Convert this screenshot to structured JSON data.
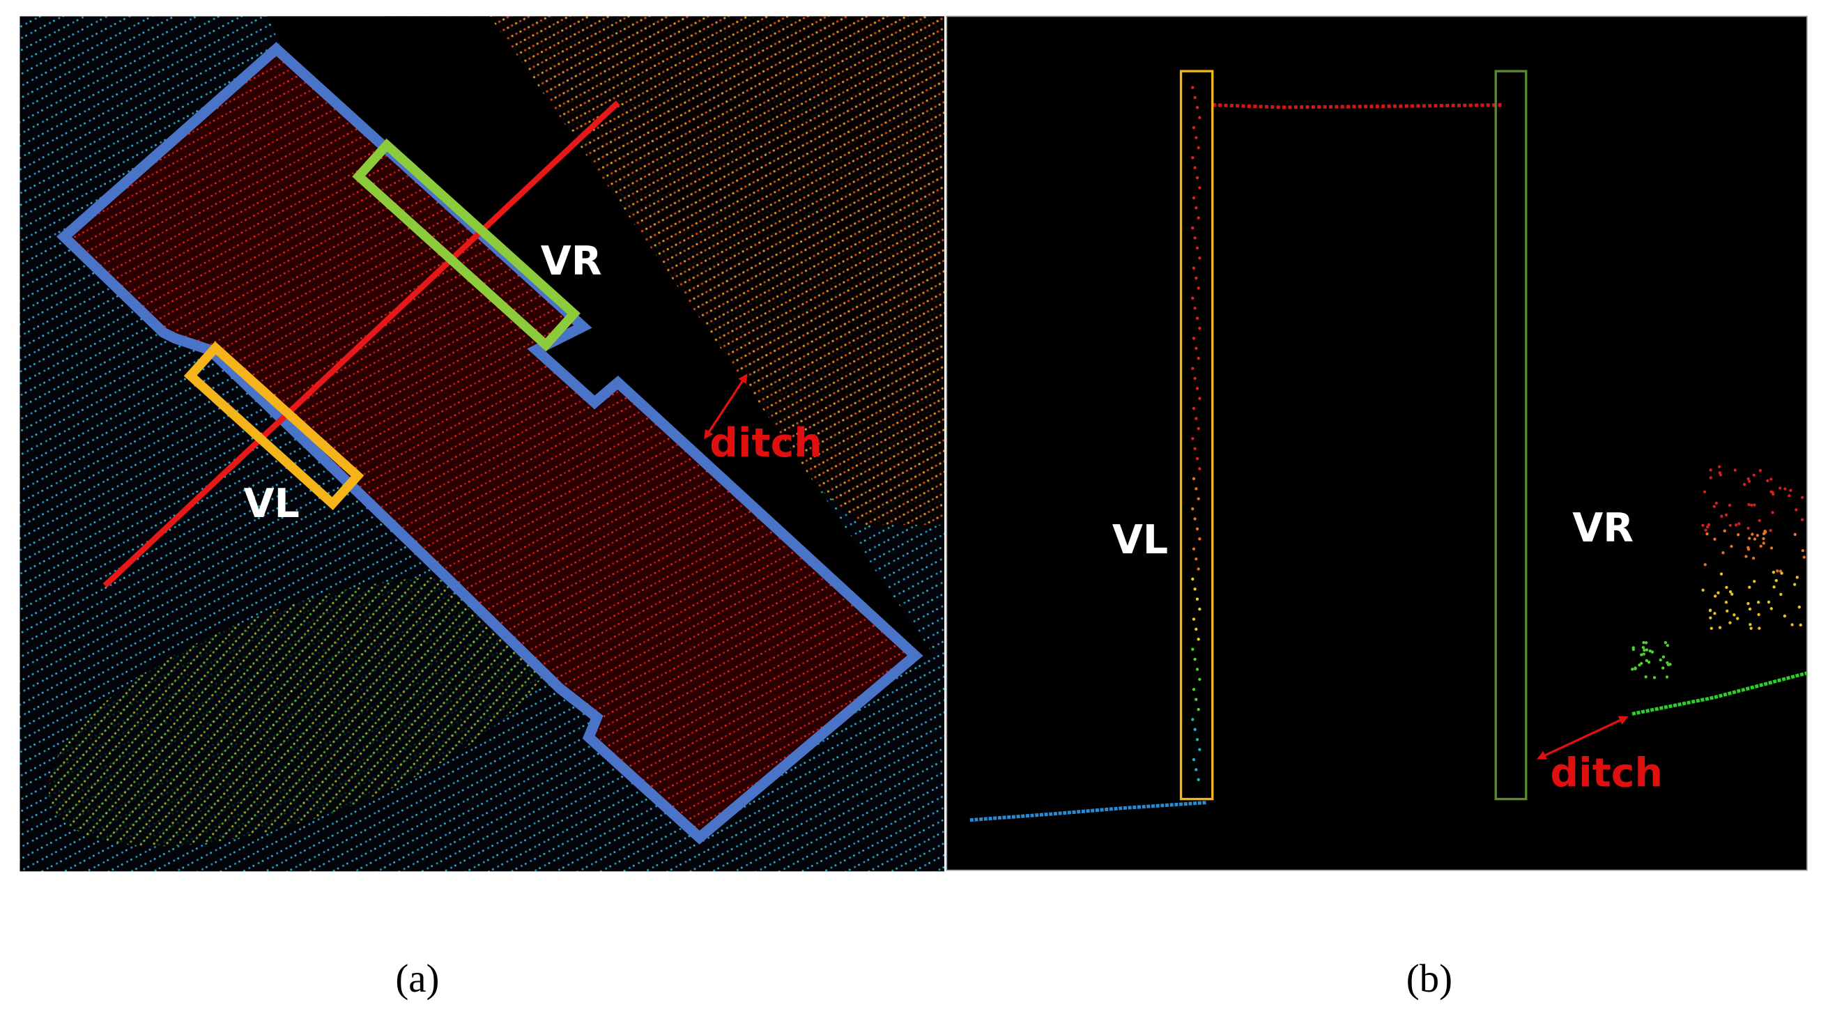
{
  "panels": [
    {
      "label": "(a)",
      "annotations": {
        "vr": "VR",
        "vl": "VL",
        "ditch": "ditch"
      }
    },
    {
      "label": "(b)",
      "annotations": {
        "vl": "VL",
        "vr": "VR",
        "ditch": "ditch"
      }
    }
  ]
}
